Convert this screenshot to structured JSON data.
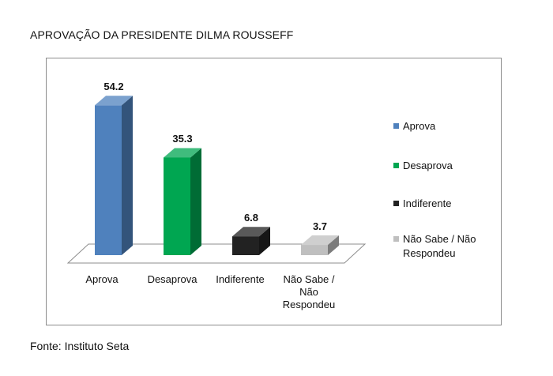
{
  "title": "APROVAÇÃO DA PRESIDENTE DILMA ROUSSEFF",
  "source": "Fonte: Instituto Seta",
  "chart_data": {
    "type": "bar",
    "title": "APROVAÇÃO DA PRESIDENTE DILMA ROUSSEFF",
    "categories": [
      "Aprova",
      "Desaprova",
      "Indiferente",
      "Não Sabe / Não Respondeu"
    ],
    "category_lines": [
      [
        "Aprova"
      ],
      [
        "Desaprova"
      ],
      [
        "Indiferente"
      ],
      [
        "Não Sabe /",
        "Não",
        "Respondeu"
      ]
    ],
    "values": [
      54.2,
      35.3,
      6.8,
      3.7
    ],
    "value_labels": [
      "54.2",
      "35.3",
      "6.8",
      "3.7"
    ],
    "colors": [
      "#4f81bd",
      "#00a651",
      "#222222",
      "#bfbfbf"
    ],
    "ylim": [
      0,
      60
    ],
    "grid": false,
    "style": "3d-column",
    "legend": {
      "position": "right",
      "entries": [
        {
          "lines": [
            "Aprova"
          ]
        },
        {
          "lines": [
            "Desaprova"
          ]
        },
        {
          "lines": [
            "Indiferente"
          ]
        },
        {
          "lines": [
            "Não Sabe / Não",
            "Respondeu"
          ]
        }
      ]
    }
  }
}
